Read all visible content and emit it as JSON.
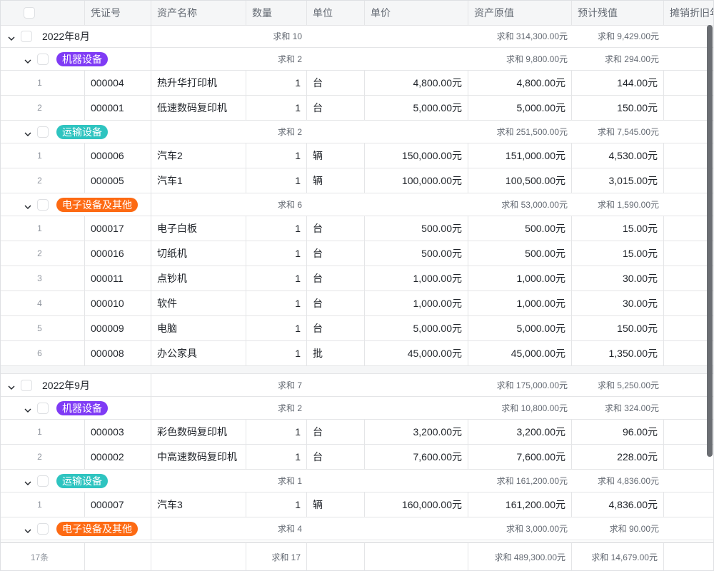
{
  "columns": [
    "",
    "凭证号",
    "资产名称",
    "数量",
    "单位",
    "单价",
    "资产原值",
    "预计残值",
    "摊销折旧年"
  ],
  "colors": {
    "机器设备": "#7f3bf5",
    "运输设备": "#2ec4c0",
    "电子设备及其他": "#fd6a13"
  },
  "groups": [
    {
      "label": "2022年8月",
      "qty_sum": "求和 10",
      "orig_sum": "求和 314,300.00元",
      "resid_sum": "求和 9,429.00元",
      "subgroups": [
        {
          "label": "机器设备",
          "qty_sum": "求和 2",
          "orig_sum": "求和 9,800.00元",
          "resid_sum": "求和 294.00元",
          "rows": [
            [
              "1",
              "000004",
              "热升华打印机",
              "1",
              "台",
              "4,800.00元",
              "4,800.00元",
              "144.00元"
            ],
            [
              "2",
              "000001",
              "低速数码复印机",
              "1",
              "台",
              "5,000.00元",
              "5,000.00元",
              "150.00元"
            ]
          ]
        },
        {
          "label": "运输设备",
          "qty_sum": "求和 2",
          "orig_sum": "求和 251,500.00元",
          "resid_sum": "求和 7,545.00元",
          "rows": [
            [
              "1",
              "000006",
              "汽车2",
              "1",
              "辆",
              "150,000.00元",
              "151,000.00元",
              "4,530.00元"
            ],
            [
              "2",
              "000005",
              "汽车1",
              "1",
              "辆",
              "100,000.00元",
              "100,500.00元",
              "3,015.00元"
            ]
          ]
        },
        {
          "label": "电子设备及其他",
          "qty_sum": "求和 6",
          "orig_sum": "求和 53,000.00元",
          "resid_sum": "求和 1,590.00元",
          "rows": [
            [
              "1",
              "000017",
              "电子白板",
              "1",
              "台",
              "500.00元",
              "500.00元",
              "15.00元"
            ],
            [
              "2",
              "000016",
              "切纸机",
              "1",
              "台",
              "500.00元",
              "500.00元",
              "15.00元"
            ],
            [
              "3",
              "000011",
              "点钞机",
              "1",
              "台",
              "1,000.00元",
              "1,000.00元",
              "30.00元"
            ],
            [
              "4",
              "000010",
              "软件",
              "1",
              "台",
              "1,000.00元",
              "1,000.00元",
              "30.00元"
            ],
            [
              "5",
              "000009",
              "电脑",
              "1",
              "台",
              "5,000.00元",
              "5,000.00元",
              "150.00元"
            ],
            [
              "6",
              "000008",
              "办公家具",
              "1",
              "批",
              "45,000.00元",
              "45,000.00元",
              "1,350.00元"
            ]
          ]
        }
      ]
    },
    {
      "label": "2022年9月",
      "qty_sum": "求和 7",
      "orig_sum": "求和 175,000.00元",
      "resid_sum": "求和 5,250.00元",
      "subgroups": [
        {
          "label": "机器设备",
          "qty_sum": "求和 2",
          "orig_sum": "求和 10,800.00元",
          "resid_sum": "求和 324.00元",
          "rows": [
            [
              "1",
              "000003",
              "彩色数码复印机",
              "1",
              "台",
              "3,200.00元",
              "3,200.00元",
              "96.00元"
            ],
            [
              "2",
              "000002",
              "中高速数码复印机",
              "1",
              "台",
              "7,600.00元",
              "7,600.00元",
              "228.00元"
            ]
          ]
        },
        {
          "label": "运输设备",
          "qty_sum": "求和 1",
          "orig_sum": "求和 161,200.00元",
          "resid_sum": "求和 4,836.00元",
          "rows": [
            [
              "1",
              "000007",
              "汽车3",
              "1",
              "辆",
              "160,000.00元",
              "161,200.00元",
              "4,836.00元"
            ]
          ]
        },
        {
          "label": "电子设备及其他",
          "qty_sum": "求和 4",
          "orig_sum": "求和 3,000.00元",
          "resid_sum": "求和 90.00元",
          "rows": []
        }
      ]
    }
  ],
  "footer": {
    "count": "17条",
    "qty_sum": "求和 17",
    "orig_sum": "求和 489,300.00元",
    "resid_sum": "求和 14,679.00元"
  }
}
